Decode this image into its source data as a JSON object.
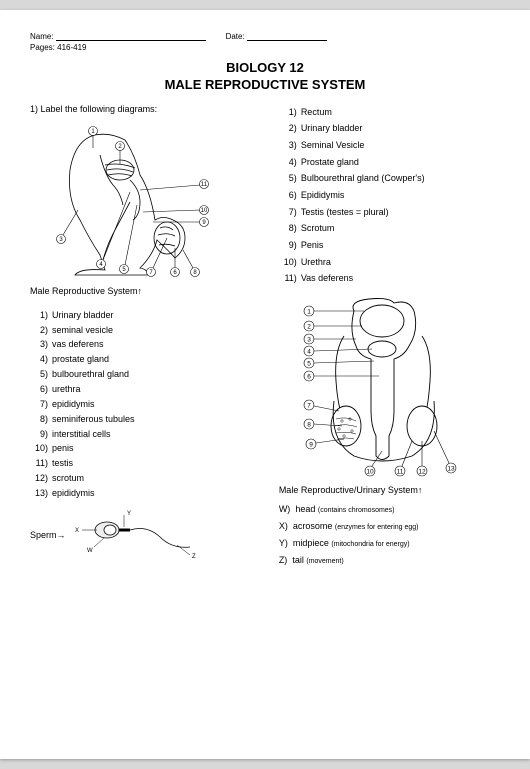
{
  "header": {
    "name_label": "Name:",
    "date_label": "Date:",
    "pages_label": "Pages:",
    "pages_value": "416-419"
  },
  "title_line1": "BIOLOGY 12",
  "title_line2": "MALE REPRODUCTIVE SYSTEM",
  "prompt": "1)  Label the following diagrams:",
  "caption1": "Male Reproductive System↑",
  "caption2": "Male Reproductive/Urinary System↑",
  "sperm_label": "Sperm→",
  "list_right_top": [
    "Rectum",
    "Urinary bladder",
    "Seminal Vesicle",
    "Prostate gland",
    "Bulbourethral gland (Cowper's)",
    "Epididymis",
    "Testis (testes = plural)",
    "Scrotum",
    "Penis",
    "Urethra",
    "Vas deferens"
  ],
  "list_left_bottom": [
    "Urinary bladder",
    "seminal vesicle",
    "vas deferens",
    "prostate gland",
    "bulbourethral gland",
    "urethra",
    "epididymis",
    "seminiferous tubules",
    "interstitial cells",
    "penis",
    "testis",
    "scrotum",
    "epididymis"
  ],
  "sperm_parts": [
    {
      "letter": "W)",
      "name": "head",
      "paren": "(contains chromosomes)"
    },
    {
      "letter": "X)",
      "name": "acrosome",
      "paren": "(enzymes for entering egg)"
    },
    {
      "letter": "Y)",
      "name": "midpiece",
      "paren": "(mitochondria for energy)"
    },
    {
      "letter": "Z)",
      "name": "tail",
      "paren": "(movement)"
    }
  ],
  "diagram_style": {
    "stroke": "#000000",
    "fill": "#ffffff",
    "stroke_width": 1,
    "label_font_size": 7,
    "circle_r": 5
  }
}
